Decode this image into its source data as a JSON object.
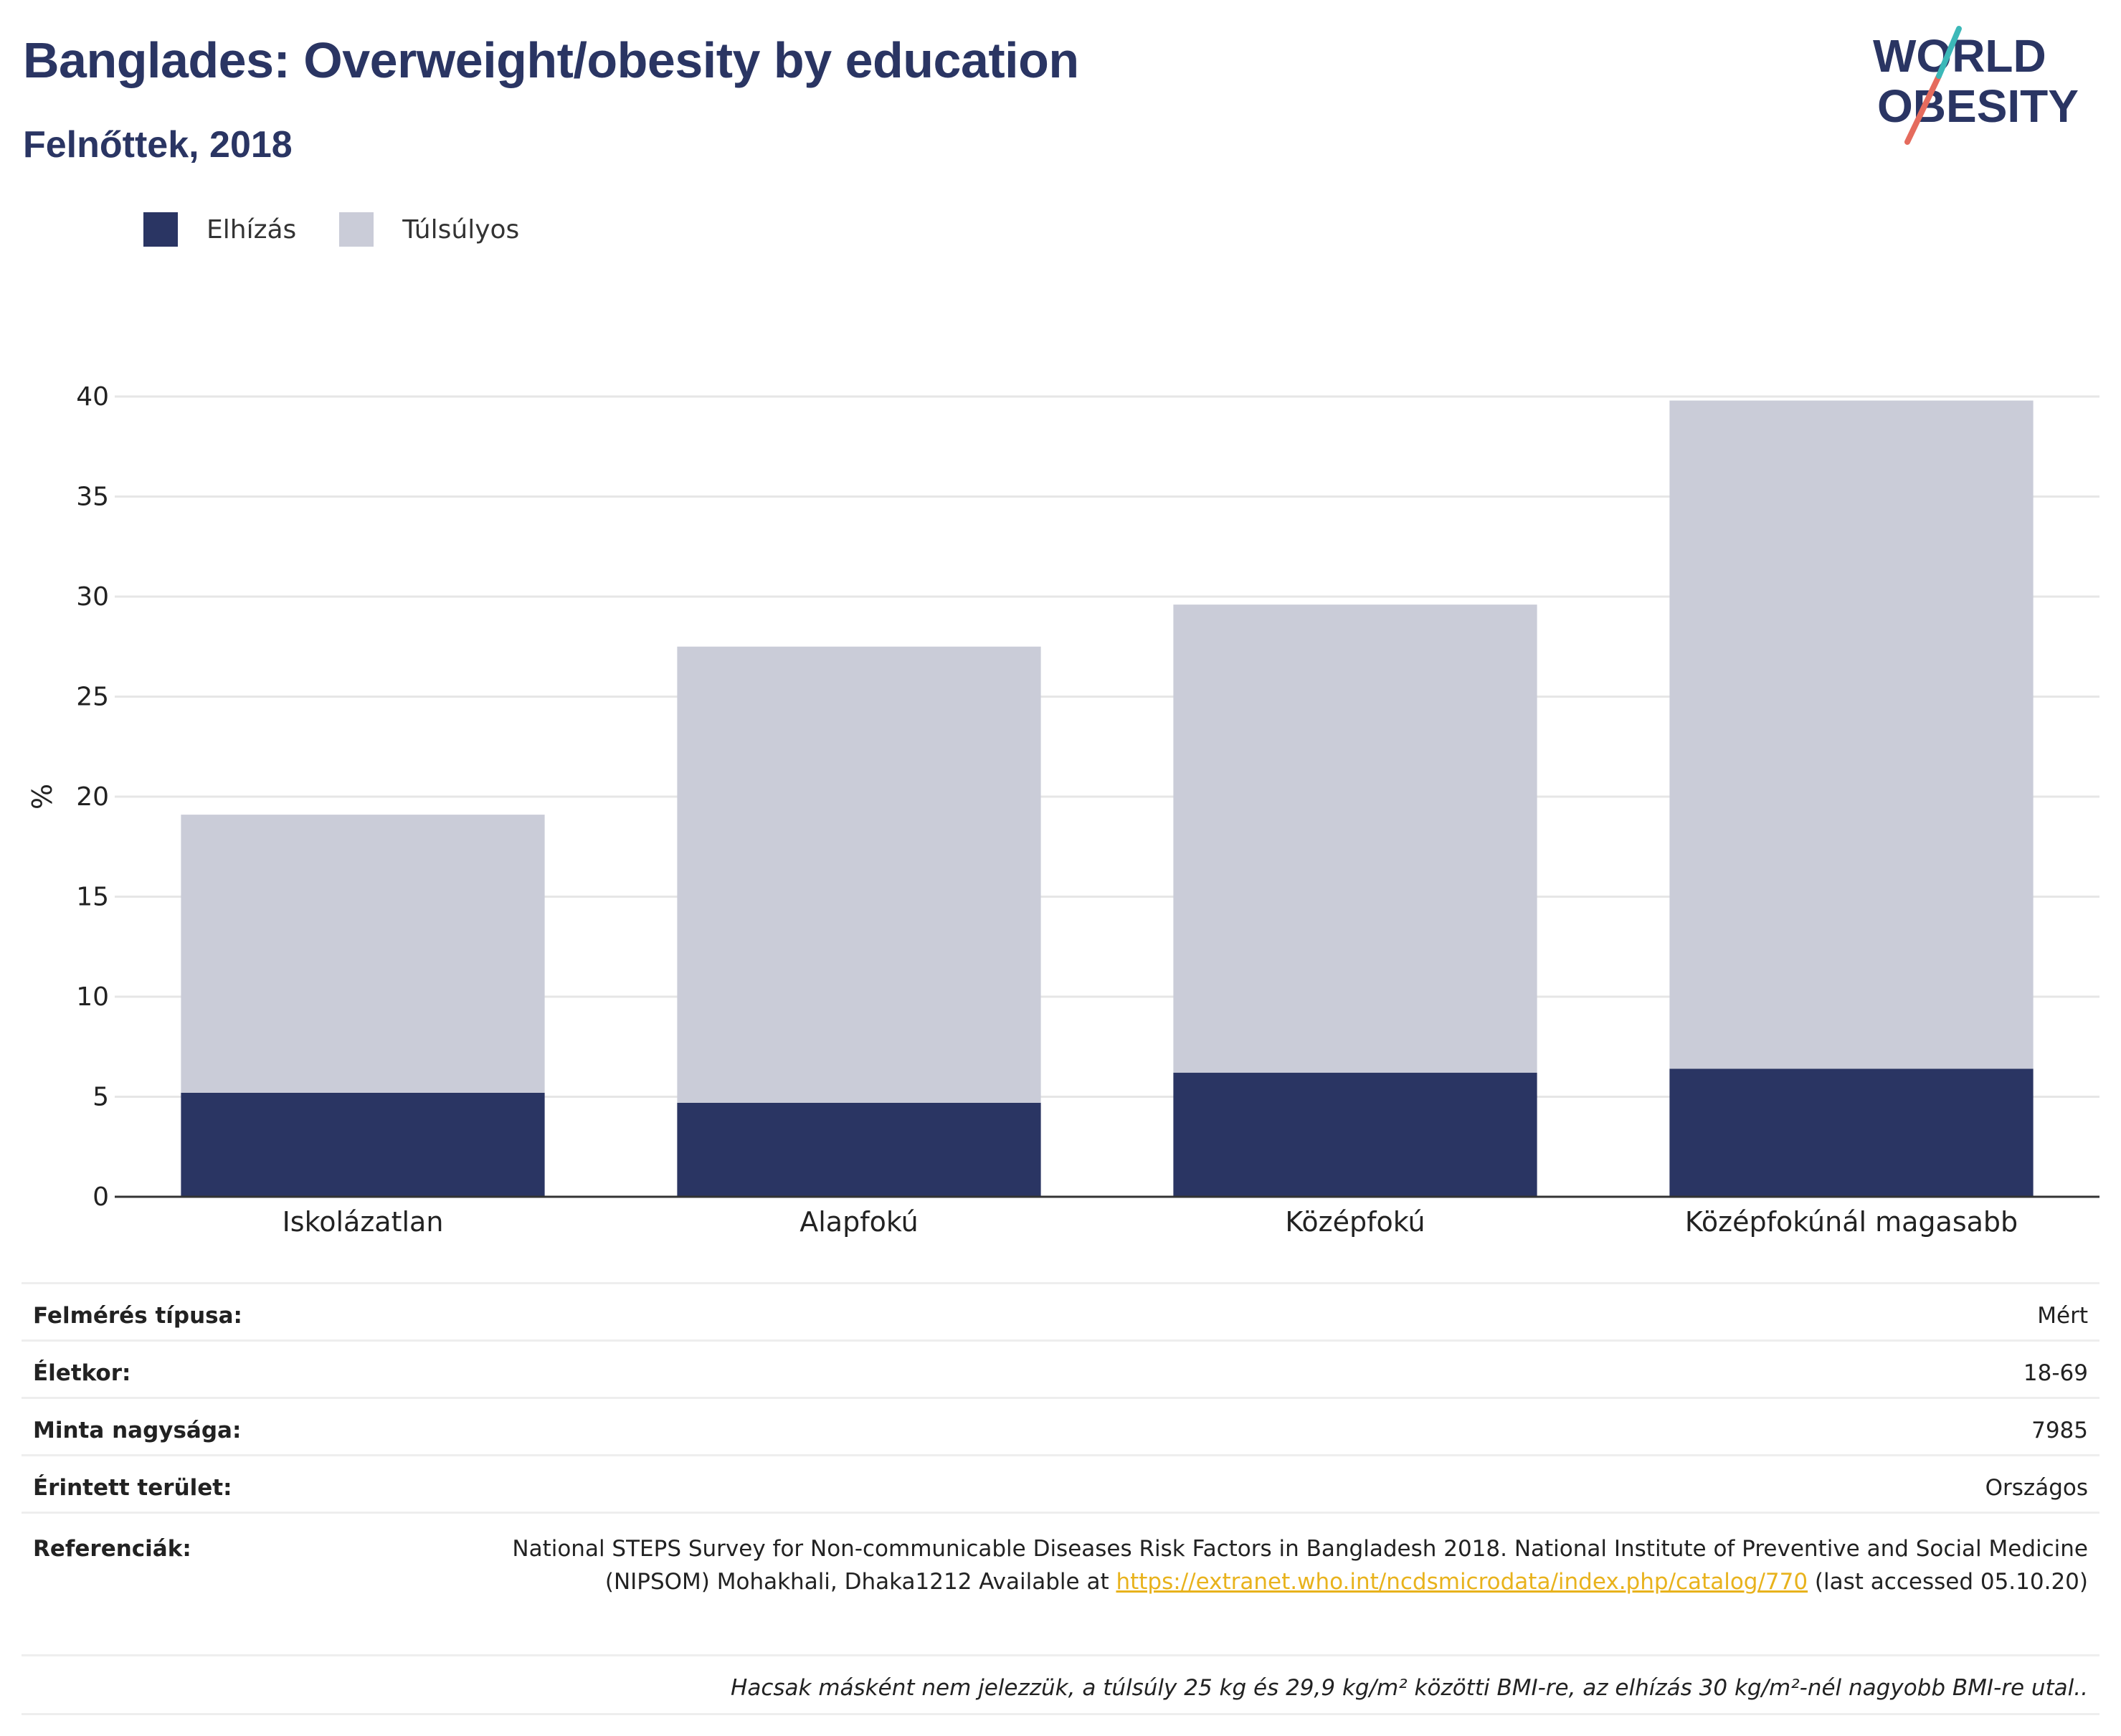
{
  "title": "Banglades: Overweight/obesity by education",
  "subtitle": "Felnőttek, 2018",
  "logo": {
    "line1": "WORLD",
    "line2": "OBESITY",
    "accent_colors": [
      "#3cb8b8",
      "#e56b5d"
    ]
  },
  "colors": {
    "obesity": "#2a3563",
    "overweight": "#caccd8",
    "title": "#2a3563",
    "grid": "#e6e6e6",
    "axis": "#333333"
  },
  "legend": [
    {
      "label": "Elhízás",
      "color": "#2a3563"
    },
    {
      "label": "Túlsúlyos",
      "color": "#caccd8"
    }
  ],
  "chart_data": {
    "type": "bar",
    "stacked": true,
    "categories": [
      "Iskolázatlan",
      "Alapfokú",
      "Középfokú",
      "Középfokúnál magasabb"
    ],
    "series": [
      {
        "name": "Elhízás",
        "values": [
          5.2,
          4.7,
          6.2,
          6.4
        ]
      },
      {
        "name": "Túlsúlyos",
        "values": [
          13.9,
          22.8,
          23.4,
          33.4
        ]
      }
    ],
    "ylabel": "%",
    "ylim": [
      0,
      40
    ],
    "yticks": [
      0,
      5,
      10,
      15,
      20,
      25,
      30,
      35,
      40
    ],
    "grid": true,
    "legend_position": "top-left"
  },
  "info": {
    "rows": [
      {
        "label": "Felmérés típusa:",
        "value": "Mért"
      },
      {
        "label": "Életkor:",
        "value": "18-69"
      },
      {
        "label": "Minta nagysága:",
        "value": "7985"
      },
      {
        "label": "Érintett terület:",
        "value": "Országos"
      }
    ],
    "reference": {
      "label": "Referenciák:",
      "text_before": "National STEPS Survey for Non-communicable Diseases Risk Factors in Bangladesh 2018. National Institute of Preventive and Social Medicine (NIPSOM) Mohakhali, Dhaka1212 Available at ",
      "link": "https://extranet.who.int/ncdsmicrodata/index.php/catalog/770",
      "text_after": " (last accessed 05.10.20)"
    },
    "note": "Hacsak másként nem jelezzük, a túlsúly 25 kg és 29,9 kg/m² közötti BMI-re, az elhízás 30 kg/m²-nél nagyobb BMI-re utal.."
  }
}
